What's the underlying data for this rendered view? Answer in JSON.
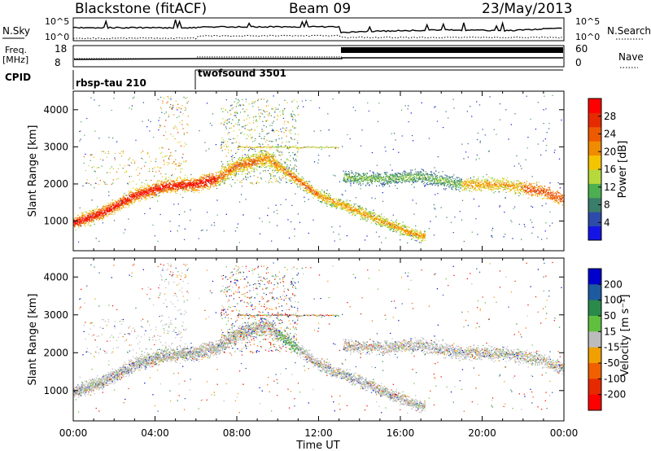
{
  "header": {
    "title": "Blackstone (fitACF)",
    "beam": "Beam 09",
    "date": "23/May/2013"
  },
  "aux_panels": {
    "nsky_label": "N.Sky",
    "nsky_ticks": [
      "10^5",
      "10^0"
    ],
    "nsearch_label": "N.Search",
    "freq_label_line1": "Freq.",
    "freq_label_line2": "[MHz]",
    "freq_ticks": [
      "18",
      "8"
    ],
    "nave_label": "Nave",
    "nave_ticks": [
      "60",
      "0"
    ],
    "cpid_label": "CPID",
    "cpid_modes": [
      {
        "name": "rbsp-tau 210",
        "start_hour": 0
      },
      {
        "name": "twofsound 3501",
        "start_hour": 6
      }
    ]
  },
  "chart_data": [
    {
      "type": "heatmap",
      "title": "",
      "xlabel": "Time UT",
      "ylabel": "Slant Range [km]",
      "xlim": [
        0,
        24
      ],
      "ylim": [
        200,
        4500
      ],
      "x_ticks": [
        "00:00",
        "04:00",
        "08:00",
        "12:00",
        "16:00",
        "20:00",
        "00:00"
      ],
      "y_ticks": [
        "1000",
        "2000",
        "3000",
        "4000"
      ],
      "colorbar": {
        "label": "Power [dB]",
        "ticks": [
          "4",
          "8",
          "12",
          "16",
          "20",
          "24",
          "28"
        ],
        "range": [
          0,
          32
        ],
        "colors": [
          "#1414e6",
          "#2d4ba8",
          "#3a7d6a",
          "#4caf50",
          "#b6d93b",
          "#f5c400",
          "#f08c00",
          "#ee5a00",
          "#e62a00",
          "#ff0000"
        ]
      },
      "features": [
        {
          "name": "main-echo-band",
          "points": [
            [
              0.0,
              950
            ],
            [
              1.5,
              1250
            ],
            [
              3.0,
              1700
            ],
            [
              4.5,
              1950
            ],
            [
              6.0,
              2000
            ],
            [
              7.0,
              2150
            ],
            [
              8.0,
              2500
            ],
            [
              9.5,
              2700
            ],
            [
              10.5,
              2300
            ],
            [
              12.0,
              1700
            ],
            [
              14.0,
              1250
            ],
            [
              16.0,
              800
            ],
            [
              17.0,
              600
            ]
          ]
        },
        {
          "name": "evening-band",
          "points": [
            [
              13.2,
              2200
            ],
            [
              15.0,
              2150
            ],
            [
              17.0,
              2200
            ],
            [
              19.0,
              2000
            ],
            [
              21.0,
              2000
            ],
            [
              23.0,
              1800
            ],
            [
              24.0,
              1600
            ]
          ]
        }
      ]
    },
    {
      "type": "heatmap",
      "title": "",
      "xlabel": "Time UT",
      "ylabel": "Slant Range [km]",
      "xlim": [
        0,
        24
      ],
      "ylim": [
        200,
        4500
      ],
      "x_ticks": [
        "00:00",
        "04:00",
        "08:00",
        "12:00",
        "16:00",
        "20:00",
        "00:00"
      ],
      "y_ticks": [
        "1000",
        "2000",
        "3000",
        "4000"
      ],
      "colorbar": {
        "label": "Velocity [m s⁻¹]",
        "ticks": [
          "200",
          "100",
          "50",
          "15",
          "-15",
          "-50",
          "-100",
          "-200"
        ],
        "colors": [
          "#0000cc",
          "#1e5aa0",
          "#2a8a4a",
          "#5fc040",
          "#bcbcbc",
          "#f0a000",
          "#f06000",
          "#e62a00",
          "#ff0000"
        ]
      }
    }
  ]
}
